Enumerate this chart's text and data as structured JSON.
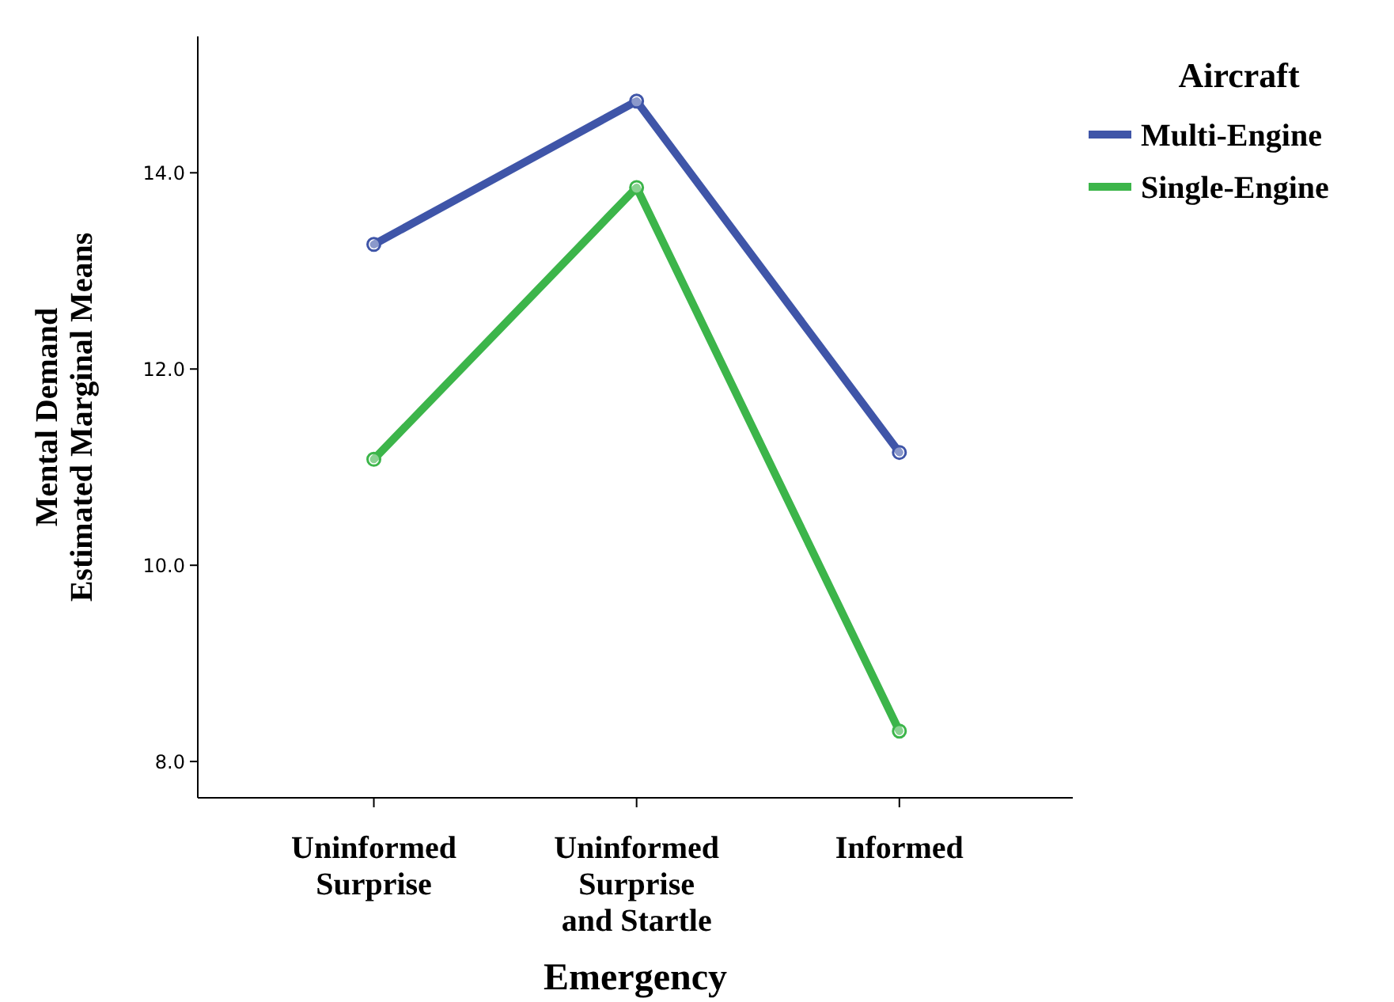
{
  "chart_data": {
    "type": "line",
    "xlabel": "Emergency",
    "ylabel": "Mental Demand\nEstimated Marginal Means",
    "legend_title": "Aircraft",
    "categories": [
      "Uninformed Surprise",
      "Uninformed Surprise and Startle",
      "Informed"
    ],
    "series": [
      {
        "name": "Multi-Engine",
        "color": "#3f55a8",
        "values": [
          13.27,
          14.73,
          11.15
        ]
      },
      {
        "name": "Single-Engine",
        "color": "#3cb54a",
        "values": [
          11.08,
          13.85,
          8.31
        ]
      }
    ],
    "ylim": [
      7.63,
      15.39
    ],
    "yticks": [
      {
        "value": 8,
        "label": "8.0"
      },
      {
        "value": 10,
        "label": "10.0"
      },
      {
        "value": 12,
        "label": "12.0"
      },
      {
        "value": 14,
        "label": "14.0"
      }
    ],
    "grid": false,
    "legend": "top right",
    "marker": "circle",
    "line_style": "solid"
  }
}
